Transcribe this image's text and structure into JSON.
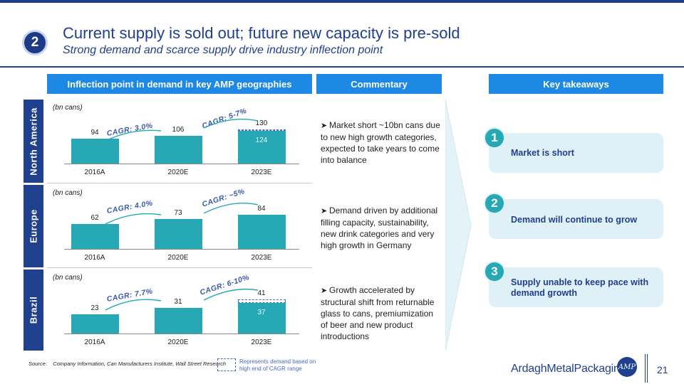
{
  "header": {
    "step_number": "2",
    "title": "Current supply is sold out; future new capacity is pre-sold",
    "subtitle": "Strong demand and scarce supply drive industry inflection point"
  },
  "column_headers": {
    "demand": "Inflection point in demand in key AMP geographies",
    "commentary": "Commentary",
    "takeaways": "Key takeaways"
  },
  "regions": [
    {
      "name": "North America",
      "unit": "(bn cans)",
      "cagr_left": "CAGR: 3.0%",
      "cagr_right": "CAGR: 5-7%",
      "commentary": "Market short ~10bn cans due to new high growth categories, expected to take years to come into balance"
    },
    {
      "name": "Europe",
      "unit": "(bn cans)",
      "cagr_left": "CAGR: 4.0%",
      "cagr_right": "CAGR: ~5%",
      "commentary": "Demand driven by additional filling capacity, sustainability, new drink categories and very high growth in Germany"
    },
    {
      "name": "Brazil",
      "unit": "(bn cans)",
      "cagr_left": "CAGR: 7.7%",
      "cagr_right": "CAGR: 6-10%",
      "commentary": "Growth accelerated by structural shift from returnable glass to cans, premiumization of beer and new product introductions"
    }
  ],
  "chart_data": [
    {
      "type": "bar",
      "region": "North America",
      "categories": [
        "2016A",
        "2020E",
        "2023E"
      ],
      "values": [
        94,
        106,
        124
      ],
      "high_end": [
        null,
        null,
        130
      ],
      "value_labels": [
        "94",
        "106",
        "124"
      ],
      "high_end_labels": [
        "",
        "",
        "130"
      ],
      "ylim": [
        0,
        130
      ]
    },
    {
      "type": "bar",
      "region": "Europe",
      "categories": [
        "2016A",
        "2020E",
        "2023E"
      ],
      "values": [
        62,
        73,
        84
      ],
      "high_end": [
        null,
        null,
        null
      ],
      "value_labels": [
        "62",
        "73",
        "84"
      ],
      "high_end_labels": [
        "",
        "",
        ""
      ],
      "ylim": [
        0,
        84
      ]
    },
    {
      "type": "bar",
      "region": "Brazil",
      "categories": [
        "2016A",
        "2020E",
        "2023E"
      ],
      "values": [
        23,
        31,
        37
      ],
      "high_end": [
        null,
        null,
        41
      ],
      "value_labels": [
        "23",
        "31",
        "37"
      ],
      "high_end_labels": [
        "",
        "",
        "41"
      ],
      "ylim": [
        0,
        41
      ]
    }
  ],
  "takeaways": [
    {
      "number": "1",
      "text": "Market is short"
    },
    {
      "number": "2",
      "text": "Demand will continue to grow"
    },
    {
      "number": "3",
      "text": "Supply unable to keep pace with demand growth"
    }
  ],
  "footer": {
    "source_label": "Source:",
    "source_text": "Company Information, Can Manufacturers Institute, Wall Street Research",
    "legend_text": "Represents demand based on high end of CAGR range",
    "logo_text": "ArdaghMetalPackaging",
    "logo_emblem": "AMP",
    "page_number": "21"
  },
  "colors": {
    "brand_navy": "#1f3f8f",
    "header_blue": "#1e88e5",
    "bar_teal": "#27a8b5",
    "takeaway_bg": "#dff1f6"
  },
  "icons": {
    "bullet": "arrow-bullet-icon",
    "chevron": "chevron-right-icon"
  }
}
